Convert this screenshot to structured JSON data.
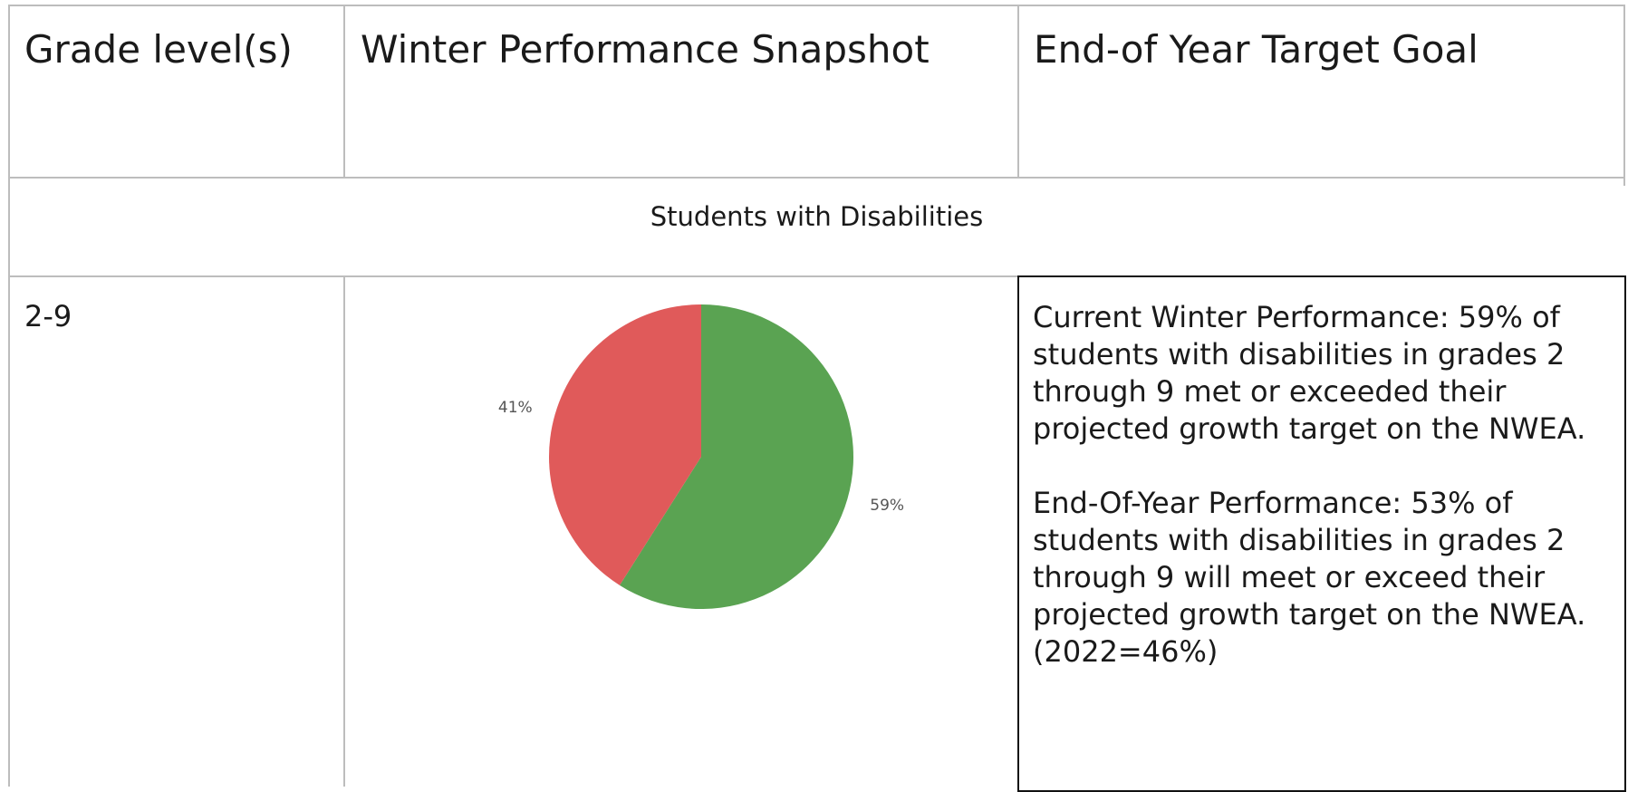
{
  "table": {
    "header": [
      "Grade level(s)",
      "Winter Performance Snapshot",
      "End-of Year Target Goal"
    ],
    "section": "Students with Disabilities",
    "rows": [
      {
        "grade": "2-9",
        "goal": [
          "Current Winter Performance: 59% of students with disabilities in grades 2 through 9 met or exceeded their projected growth target on the NWEA.",
          "End-Of-Year Performance: 53% of students with disabilities in grades 2 through 9 will meet or exceed their projected growth target on the NWEA. (2022=46%)"
        ]
      }
    ]
  },
  "chart_data": {
    "type": "pie",
    "categories": [
      null,
      null
    ],
    "values": [
      59,
      41
    ],
    "value_labels": [
      "59%",
      "41%"
    ],
    "colors": [
      "#5aa352",
      "#e05a5a"
    ]
  }
}
